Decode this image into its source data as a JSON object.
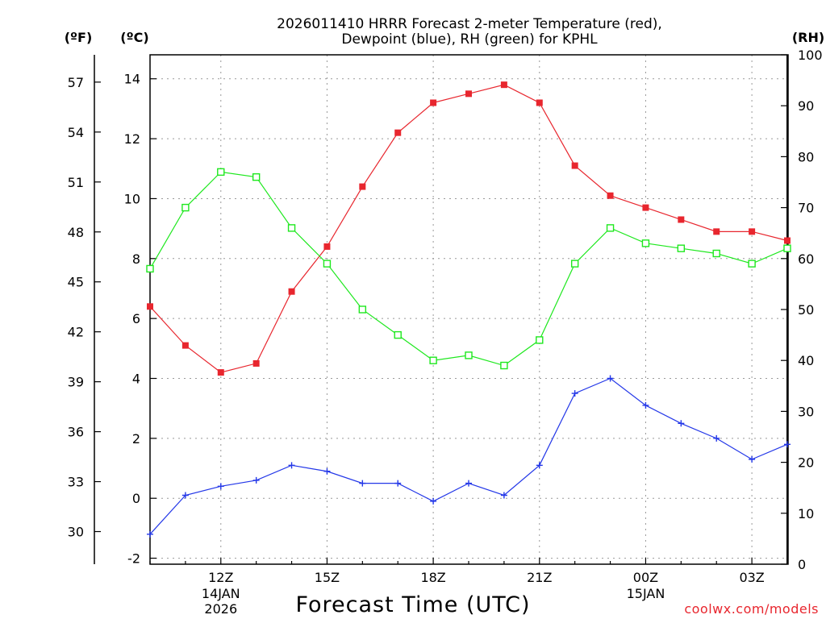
{
  "chart_data": {
    "type": "line",
    "title_line1": "2026011410 HRRR Forecast 2-meter Temperature (red),",
    "title_line2": "Dewpoint (blue), RH (green) for KPHL",
    "left_outer_unit": "(ºF)",
    "left_inner_unit": "(ºC)",
    "right_unit": "(RH)",
    "xlabel": "Forecast Time (UTC)",
    "credit": "coolwx.com/models",
    "x_hours": [
      10,
      11,
      12,
      13,
      14,
      15,
      16,
      17,
      18,
      19,
      20,
      21,
      22,
      23,
      24,
      25,
      26,
      27,
      28
    ],
    "x_range": [
      10,
      28
    ],
    "x_ticks": [
      {
        "hour": 12,
        "label": "12Z",
        "sub1": "14JAN",
        "sub2": "2026"
      },
      {
        "hour": 15,
        "label": "15Z",
        "sub1": "",
        "sub2": ""
      },
      {
        "hour": 18,
        "label": "18Z",
        "sub1": "",
        "sub2": ""
      },
      {
        "hour": 21,
        "label": "21Z",
        "sub1": "",
        "sub2": ""
      },
      {
        "hour": 24,
        "label": "00Z",
        "sub1": "15JAN",
        "sub2": ""
      },
      {
        "hour": 27,
        "label": "03Z",
        "sub1": "",
        "sub2": ""
      }
    ],
    "ylim_c": [
      -2.2,
      14.8
    ],
    "y_ticks_c": [
      "-2",
      "0",
      "2",
      "4",
      "6",
      "8",
      "10",
      "12",
      "14"
    ],
    "y_ticks_f": [
      "30",
      "33",
      "36",
      "39",
      "42",
      "45",
      "48",
      "51",
      "54",
      "57"
    ],
    "ylim_rh": [
      0,
      100
    ],
    "y_ticks_rh": [
      "0",
      "10",
      "20",
      "30",
      "40",
      "50",
      "60",
      "70",
      "80",
      "90",
      "100"
    ],
    "series": [
      {
        "name": "Temperature (°C)",
        "axis": "c",
        "color": "#e8262e",
        "marker": "filled-square",
        "values": [
          6.4,
          5.1,
          4.2,
          4.5,
          6.9,
          8.4,
          10.4,
          12.2,
          13.2,
          13.5,
          13.8,
          13.2,
          11.1,
          10.1,
          9.7,
          9.3,
          8.9,
          8.9,
          8.6
        ]
      },
      {
        "name": "Dewpoint (°C)",
        "axis": "c",
        "color": "#2337e8",
        "marker": "plus",
        "values": [
          -1.2,
          0.1,
          0.4,
          0.6,
          1.1,
          0.9,
          0.5,
          0.5,
          -0.1,
          0.5,
          0.1,
          1.1,
          3.5,
          4.0,
          3.1,
          2.5,
          2.0,
          1.3,
          1.8
        ]
      },
      {
        "name": "RH (%)",
        "axis": "rh",
        "color": "#1ee81e",
        "marker": "open-square",
        "values": [
          58,
          70,
          77,
          76,
          66,
          59,
          50,
          45,
          40,
          41,
          39,
          44,
          59,
          66,
          63,
          62,
          61,
          59,
          62
        ]
      }
    ]
  }
}
